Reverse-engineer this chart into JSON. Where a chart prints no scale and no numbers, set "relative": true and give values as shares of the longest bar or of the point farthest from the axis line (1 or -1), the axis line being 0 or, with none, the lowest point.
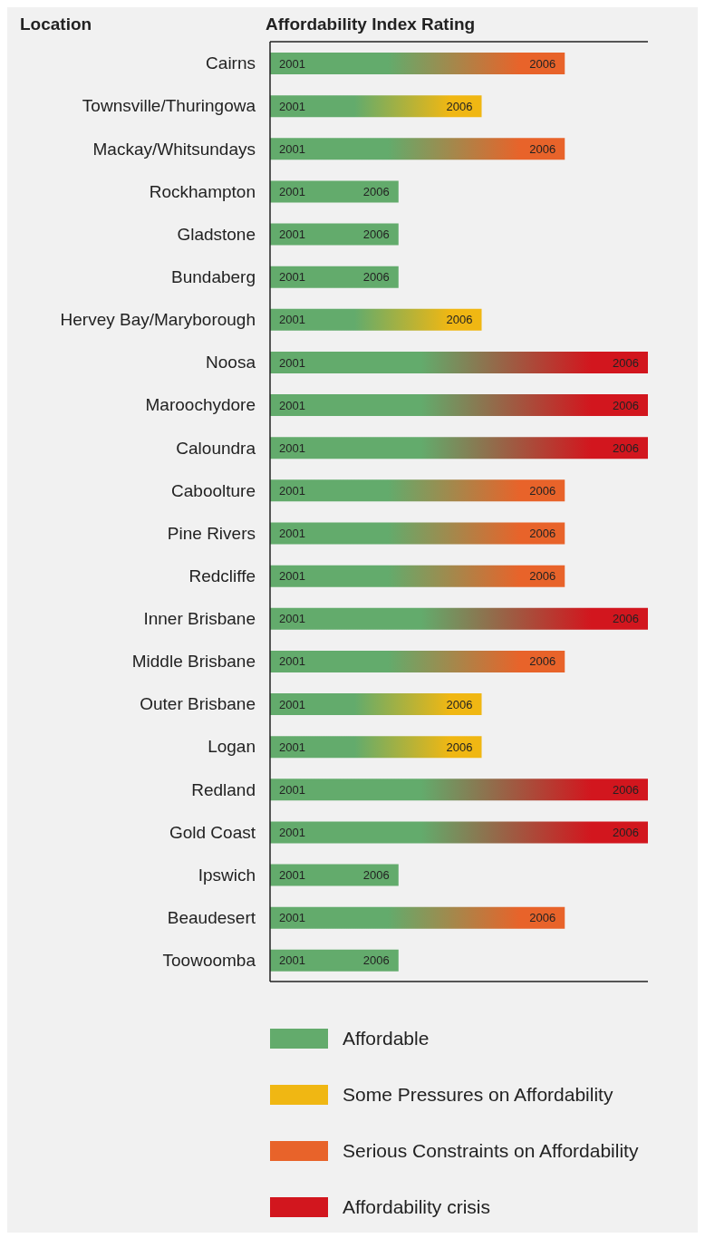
{
  "chart_data": {
    "type": "bar",
    "orientation": "horizontal",
    "stacked": true,
    "relative": true,
    "title": "Affordability Index Rating",
    "ylabel": "Location",
    "legend": "bottom",
    "categories": [
      "Cairns",
      "Townsville/Thuringowa",
      "Mackay/Whitsundays",
      "Rockhampton",
      "Gladstone",
      "Bundaberg",
      "Hervey Bay/Maryborough",
      "Noosa",
      "Maroochydore",
      "Caloundra",
      "Caboolture",
      "Pine Rivers",
      "Redcliffe",
      "Inner Brisbane",
      "Middle Brisbane",
      "Outer Brisbane",
      "Logan",
      "Redland",
      "Gold Coast",
      "Ipswich",
      "Beaudesert",
      "Toowoomba"
    ],
    "series": [
      {
        "name": "Affordable",
        "color": "#63ab6c",
        "values": [
          null,
          null,
          null,
          0.34,
          0.34,
          0.34,
          null,
          null,
          null,
          null,
          null,
          null,
          null,
          null,
          null,
          null,
          null,
          null,
          null,
          0.34,
          null,
          0.34
        ]
      },
      {
        "name": "Some Pressures on Affordability",
        "color": "#f0b713",
        "values": [
          null,
          0.56,
          null,
          null,
          null,
          null,
          0.56,
          null,
          null,
          null,
          null,
          null,
          null,
          null,
          null,
          0.56,
          0.56,
          null,
          null,
          null,
          null,
          null
        ]
      },
      {
        "name": "Serious Constraints on Affordability",
        "color": "#e8632a",
        "values": [
          0.78,
          null,
          0.78,
          null,
          null,
          null,
          null,
          null,
          null,
          null,
          0.78,
          0.78,
          0.78,
          null,
          0.78,
          null,
          null,
          null,
          null,
          null,
          0.78,
          null
        ]
      },
      {
        "name": "Affordability crisis",
        "color": "#d2161e",
        "values": [
          null,
          null,
          null,
          null,
          null,
          null,
          null,
          1,
          1,
          1,
          null,
          null,
          null,
          1,
          null,
          null,
          null,
          1,
          1,
          null,
          null,
          null
        ]
      }
    ],
    "annotations": [
      {
        "text": "2001",
        "x": 0,
        "y": "Cairns"
      },
      {
        "text": "2001",
        "x": 0,
        "y": "Townsville/Thuringowa"
      },
      {
        "text": "2001",
        "x": 0,
        "y": "Mackay/Whitsundays"
      },
      {
        "text": "2001",
        "x": 0,
        "y": "Rockhampton"
      },
      {
        "text": "2001",
        "x": 0,
        "y": "Gladstone"
      },
      {
        "text": "2001",
        "x": 0,
        "y": "Bundaberg"
      },
      {
        "text": "2001",
        "x": 0,
        "y": "Hervey Bay/Maryborough"
      },
      {
        "text": "2001",
        "x": 0,
        "y": "Noosa"
      },
      {
        "text": "2001",
        "x": 0,
        "y": "Maroochydore"
      },
      {
        "text": "2001",
        "x": 0,
        "y": "Caloundra"
      },
      {
        "text": "2001",
        "x": 0,
        "y": "Caboolture"
      },
      {
        "text": "2001",
        "x": 0,
        "y": "Pine Rivers"
      },
      {
        "text": "2001",
        "x": 0,
        "y": "Redcliffe"
      },
      {
        "text": "2001",
        "x": 0,
        "y": "Inner Brisbane"
      },
      {
        "text": "2001",
        "x": 0,
        "y": "Middle Brisbane"
      },
      {
        "text": "2001",
        "x": 0,
        "y": "Outer Brisbane"
      },
      {
        "text": "2001",
        "x": 0,
        "y": "Logan"
      },
      {
        "text": "2001",
        "x": 0,
        "y": "Redland"
      },
      {
        "text": "2001",
        "x": 0,
        "y": "Gold Coast"
      },
      {
        "text": "2001",
        "x": 0,
        "y": "Ipswich"
      },
      {
        "text": "2001",
        "x": 0,
        "y": "Beaudesert"
      },
      {
        "text": "2001",
        "x": 0,
        "y": "Toowoomba"
      },
      {
        "text": "2006",
        "x": 0.78,
        "y": "Cairns"
      },
      {
        "text": "2006",
        "x": 0.56,
        "y": "Townsville/Thuringowa"
      },
      {
        "text": "2006",
        "x": 0.78,
        "y": "Mackay/Whitsundays"
      },
      {
        "text": "2006",
        "x": 0.34,
        "y": "Rockhampton"
      },
      {
        "text": "2006",
        "x": 0.34,
        "y": "Gladstone"
      },
      {
        "text": "2006",
        "x": 0.34,
        "y": "Bundaberg"
      },
      {
        "text": "2006",
        "x": 0.56,
        "y": "Hervey Bay/Maryborough"
      },
      {
        "text": "2006",
        "x": 1,
        "y": "Noosa"
      },
      {
        "text": "2006",
        "x": 1,
        "y": "Maroochydore"
      },
      {
        "text": "2006",
        "x": 1,
        "y": "Caloundra"
      },
      {
        "text": "2006",
        "x": 0.78,
        "y": "Caboolture"
      },
      {
        "text": "2006",
        "x": 0.78,
        "y": "Pine Rivers"
      },
      {
        "text": "2006",
        "x": 0.78,
        "y": "Redcliffe"
      },
      {
        "text": "2006",
        "x": 1,
        "y": "Inner Brisbane"
      },
      {
        "text": "2006",
        "x": 0.78,
        "y": "Middle Brisbane"
      },
      {
        "text": "2006",
        "x": 0.56,
        "y": "Outer Brisbane"
      },
      {
        "text": "2006",
        "x": 0.56,
        "y": "Logan"
      },
      {
        "text": "2006",
        "x": 1,
        "y": "Redland"
      },
      {
        "text": "2006",
        "x": 1,
        "y": "Gold Coast"
      },
      {
        "text": "2006",
        "x": 0.34,
        "y": "Ipswich"
      },
      {
        "text": "2006",
        "x": 0.78,
        "y": "Beaudesert"
      },
      {
        "text": "2006",
        "x": 0.34,
        "y": "Toowoomba"
      }
    ]
  }
}
